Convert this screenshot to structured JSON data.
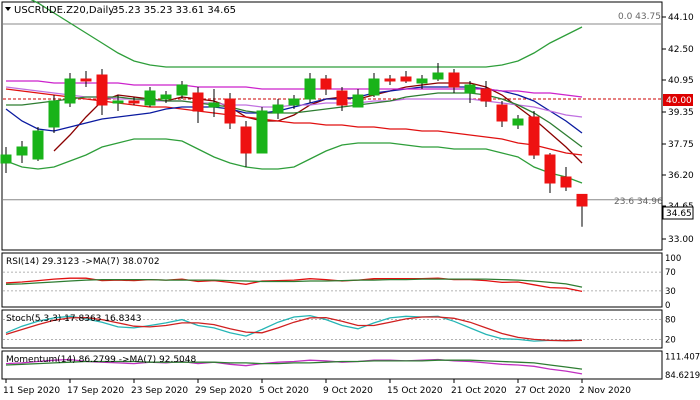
{
  "colors": {
    "bull": "#19b319",
    "bear": "#ee1111",
    "sma_fast": "#8b0000",
    "sma_slow": "#e01010",
    "ema_blue": "#0a1aa0",
    "purple": "#cc22cc",
    "green_ma": "#2e7d32",
    "band": "#2e9e3a",
    "lilac": "#c070e0",
    "rsi": "#e01010",
    "rsi_ma": "#2e7d32",
    "stoch_k": "#26b5b5",
    "stoch_d": "#d02020",
    "mom": "#c030c0",
    "mom_ma": "#2e7d32",
    "fib": "#888888",
    "level": "#cc0000",
    "price_box": "#ffffff"
  },
  "main": {
    "title": "USCRUDE.Z20,Daily",
    "ohlc": "35.23 35.23 33.61 34.65",
    "fib_top_label": "0.0 43.75",
    "fib_mid_label": "23.6 34.96",
    "level_label": "40.00",
    "price_label": "34.65"
  },
  "rsi": {
    "title": "RSI(14) 29.3123 ->MA(7) 38.0702"
  },
  "stoch": {
    "title": "Stoch(5,3,3) 17.8363 16.8343"
  },
  "momentum": {
    "title": "Momentum(14) 86.2799 ->MA(7) 92.5048"
  },
  "chart_data": [
    {
      "type": "candlestick",
      "title": "USCRUDE.Z20,Daily",
      "ylim": [
        32.5,
        44.8
      ],
      "y_ticks": [
        "44.10",
        "42.50",
        "40.95",
        "39.35",
        "37.75",
        "36.20",
        "34.65",
        "33.00"
      ],
      "y_tick_values": [
        44.1,
        42.5,
        40.95,
        39.35,
        37.75,
        36.2,
        34.65,
        33.0
      ],
      "x_tick_labels": [
        "11 Sep 2020",
        "17 Sep 2020",
        "23 Sep 2020",
        "29 Sep 2020",
        "5 Oct 2020",
        "9 Oct 2020",
        "15 Oct 2020",
        "21 Oct 2020",
        "27 Oct 2020",
        "2 Nov 2020"
      ],
      "x_tick_bar_index": [
        0,
        4,
        8,
        12,
        16,
        20,
        24,
        28,
        32,
        36
      ],
      "candles": [
        {
          "o": 36.8,
          "h": 37.6,
          "l": 36.3,
          "c": 37.2
        },
        {
          "o": 37.2,
          "h": 37.9,
          "l": 36.8,
          "c": 37.6
        },
        {
          "o": 37.0,
          "h": 38.6,
          "l": 36.9,
          "c": 38.4
        },
        {
          "o": 38.6,
          "h": 40.2,
          "l": 38.3,
          "c": 39.9
        },
        {
          "o": 39.8,
          "h": 41.3,
          "l": 39.6,
          "c": 41.0
        },
        {
          "o": 41.0,
          "h": 41.4,
          "l": 40.6,
          "c": 40.9
        },
        {
          "o": 41.2,
          "h": 41.5,
          "l": 39.2,
          "c": 39.7
        },
        {
          "o": 39.8,
          "h": 40.2,
          "l": 39.4,
          "c": 39.9
        },
        {
          "o": 39.9,
          "h": 40.1,
          "l": 39.7,
          "c": 39.8
        },
        {
          "o": 39.7,
          "h": 40.6,
          "l": 39.6,
          "c": 40.4
        },
        {
          "o": 40.0,
          "h": 40.4,
          "l": 39.8,
          "c": 40.2
        },
        {
          "o": 40.2,
          "h": 40.9,
          "l": 40.0,
          "c": 40.7
        },
        {
          "o": 40.3,
          "h": 40.6,
          "l": 38.8,
          "c": 39.4
        },
        {
          "o": 39.6,
          "h": 40.5,
          "l": 39.1,
          "c": 39.8
        },
        {
          "o": 40.0,
          "h": 40.3,
          "l": 38.5,
          "c": 38.8
        },
        {
          "o": 38.6,
          "h": 38.9,
          "l": 36.6,
          "c": 37.3
        },
        {
          "o": 37.3,
          "h": 39.6,
          "l": 37.3,
          "c": 39.4
        },
        {
          "o": 39.3,
          "h": 40.0,
          "l": 39.0,
          "c": 39.7
        },
        {
          "o": 39.7,
          "h": 40.2,
          "l": 39.5,
          "c": 40.0
        },
        {
          "o": 40.0,
          "h": 41.3,
          "l": 39.8,
          "c": 41.0
        },
        {
          "o": 41.0,
          "h": 41.2,
          "l": 40.2,
          "c": 40.5
        },
        {
          "o": 40.4,
          "h": 40.6,
          "l": 39.4,
          "c": 39.7
        },
        {
          "o": 39.6,
          "h": 40.5,
          "l": 39.6,
          "c": 40.2
        },
        {
          "o": 40.2,
          "h": 41.3,
          "l": 40.1,
          "c": 41.0
        },
        {
          "o": 41.0,
          "h": 41.2,
          "l": 40.7,
          "c": 40.9
        },
        {
          "o": 41.1,
          "h": 41.4,
          "l": 40.8,
          "c": 40.9
        },
        {
          "o": 40.8,
          "h": 41.2,
          "l": 40.5,
          "c": 41.0
        },
        {
          "o": 41.0,
          "h": 41.8,
          "l": 40.9,
          "c": 41.3
        },
        {
          "o": 41.3,
          "h": 41.5,
          "l": 40.3,
          "c": 40.6
        },
        {
          "o": 40.3,
          "h": 40.9,
          "l": 39.8,
          "c": 40.7
        },
        {
          "o": 40.5,
          "h": 40.9,
          "l": 39.6,
          "c": 39.9
        },
        {
          "o": 39.7,
          "h": 39.9,
          "l": 38.6,
          "c": 38.9
        },
        {
          "o": 38.7,
          "h": 39.2,
          "l": 38.5,
          "c": 39.0
        },
        {
          "o": 39.1,
          "h": 39.4,
          "l": 37.0,
          "c": 37.2
        },
        {
          "o": 37.2,
          "h": 37.3,
          "l": 35.3,
          "c": 35.8
        },
        {
          "o": 36.1,
          "h": 36.6,
          "l": 35.4,
          "c": 35.6
        },
        {
          "o": 35.23,
          "h": 35.23,
          "l": 33.61,
          "c": 34.65
        }
      ],
      "overlays": [
        {
          "name": "sma_fast",
          "color": "sma_fast",
          "values": [
            null,
            null,
            null,
            37.4,
            38.2,
            39.1,
            39.9,
            40.2,
            40.1,
            40.0,
            39.9,
            40.1,
            40.0,
            39.9,
            39.6,
            39.1,
            38.9,
            38.9,
            39.2,
            39.7,
            40.0,
            40.1,
            40.0,
            40.2,
            40.4,
            40.6,
            40.7,
            40.8,
            40.8,
            40.8,
            40.6,
            40.2,
            39.6,
            39.0,
            38.3,
            37.6,
            36.8
          ]
        },
        {
          "name": "sma_slow",
          "color": "sma_slow",
          "values": [
            40.5,
            40.4,
            40.3,
            40.2,
            40.1,
            40.0,
            39.9,
            39.8,
            39.7,
            39.6,
            39.6,
            39.5,
            39.4,
            39.3,
            39.2,
            39.1,
            39.0,
            38.9,
            38.8,
            38.8,
            38.7,
            38.7,
            38.6,
            38.6,
            38.5,
            38.5,
            38.4,
            38.4,
            38.3,
            38.2,
            38.1,
            38.0,
            37.8,
            37.7,
            37.5,
            37.3,
            37.2
          ]
        },
        {
          "name": "ema_blue",
          "color": "ema_blue",
          "values": [
            39.5,
            38.9,
            38.5,
            38.4,
            38.6,
            38.8,
            39.0,
            39.1,
            39.2,
            39.3,
            39.5,
            39.6,
            39.6,
            39.6,
            39.5,
            39.3,
            39.3,
            39.4,
            39.6,
            39.8,
            40.0,
            40.0,
            40.1,
            40.3,
            40.4,
            40.5,
            40.6,
            40.6,
            40.6,
            40.6,
            40.5,
            40.4,
            40.2,
            39.9,
            39.4,
            38.9,
            38.3
          ]
        },
        {
          "name": "sma_purple",
          "color": "purple",
          "values": [
            40.9,
            40.9,
            40.9,
            40.8,
            40.8,
            40.8,
            40.8,
            40.8,
            40.7,
            40.7,
            40.7,
            40.7,
            40.6,
            40.6,
            40.6,
            40.6,
            40.5,
            40.5,
            40.5,
            40.5,
            40.5,
            40.5,
            40.5,
            40.5,
            40.5,
            40.5,
            40.5,
            40.5,
            40.5,
            40.5,
            40.5,
            40.4,
            40.4,
            40.3,
            40.3,
            40.2,
            40.1
          ]
        },
        {
          "name": "sma_lilac",
          "color": "lilac",
          "values": [
            40.6,
            40.5,
            40.4,
            40.3,
            40.2,
            40.1,
            40.1,
            40.0,
            40.0,
            39.9,
            39.9,
            39.9,
            39.8,
            39.8,
            39.7,
            39.7,
            39.6,
            39.6,
            39.7,
            39.7,
            39.8,
            39.8,
            39.8,
            39.9,
            39.9,
            40.0,
            40.0,
            40.0,
            40.0,
            40.0,
            39.9,
            39.8,
            39.7,
            39.6,
            39.4,
            39.2,
            39.1
          ]
        },
        {
          "name": "sma_green",
          "color": "green_ma",
          "values": [
            39.7,
            39.7,
            39.8,
            39.9,
            40.0,
            40.1,
            40.1,
            40.1,
            40.0,
            40.0,
            39.9,
            39.9,
            39.8,
            39.7,
            39.6,
            39.4,
            39.3,
            39.3,
            39.3,
            39.4,
            39.5,
            39.6,
            39.7,
            39.8,
            39.9,
            40.1,
            40.2,
            40.3,
            40.3,
            40.3,
            40.2,
            40.0,
            39.7,
            39.3,
            38.8,
            38.2,
            37.6
          ]
        },
        {
          "name": "bb_upper",
          "color": "band",
          "values": [
            45.6,
            45.2,
            44.8,
            44.3,
            43.8,
            43.3,
            42.8,
            42.3,
            41.9,
            41.7,
            41.6,
            41.6,
            41.6,
            41.6,
            41.6,
            41.6,
            41.6,
            41.6,
            41.6,
            41.6,
            41.6,
            41.6,
            41.6,
            41.6,
            41.6,
            41.6,
            41.6,
            41.6,
            41.6,
            41.6,
            41.6,
            41.7,
            41.9,
            42.3,
            42.8,
            43.2,
            43.6
          ]
        },
        {
          "name": "bb_lower",
          "color": "band",
          "values": [
            36.9,
            36.6,
            36.5,
            36.6,
            36.9,
            37.2,
            37.6,
            37.8,
            38.0,
            38.0,
            38.0,
            37.9,
            37.5,
            37.1,
            36.8,
            36.6,
            36.5,
            36.5,
            36.6,
            37.0,
            37.4,
            37.7,
            37.8,
            37.8,
            37.8,
            37.7,
            37.6,
            37.6,
            37.5,
            37.5,
            37.5,
            37.3,
            37.1,
            36.6,
            36.3,
            36.1,
            35.8
          ]
        }
      ],
      "horizontal_levels": [
        {
          "label": "0.0 43.75",
          "value": 43.75,
          "style": "solid"
        },
        {
          "label": "23.6 34.96",
          "value": 34.96,
          "style": "solid"
        },
        {
          "label": "40.00",
          "value": 40.0,
          "style": "dashed"
        }
      ]
    },
    {
      "type": "line",
      "title": "RSI(14) 29.3123 ->MA(7) 38.0702",
      "ylim": [
        0,
        100
      ],
      "y_ticks": [
        100,
        70,
        30,
        0
      ],
      "series": [
        {
          "name": "RSI(14)",
          "color": "rsi",
          "values": [
            47,
            49,
            52,
            55,
            57,
            57,
            52,
            53,
            52,
            54,
            53,
            55,
            50,
            52,
            48,
            44,
            51,
            52,
            53,
            56,
            54,
            51,
            53,
            56,
            56,
            56,
            56,
            57,
            54,
            54,
            52,
            48,
            49,
            43,
            37,
            36,
            29
          ]
        },
        {
          "name": "MA(7)",
          "color": "rsi_ma",
          "values": [
            44,
            45,
            47,
            49,
            51,
            53,
            54,
            54,
            54,
            54,
            53,
            53,
            53,
            53,
            52,
            51,
            50,
            50,
            50,
            51,
            51,
            52,
            53,
            53,
            54,
            54,
            55,
            55,
            55,
            55,
            55,
            54,
            53,
            51,
            48,
            45,
            38
          ]
        }
      ]
    },
    {
      "type": "line",
      "title": "Stoch(5,3,3) 17.8363 16.8343",
      "ylim": [
        0,
        100
      ],
      "y_ticks": [
        80,
        20
      ],
      "series": [
        {
          "name": "%K",
          "color": "stoch_k",
          "values": [
            40,
            60,
            75,
            85,
            90,
            82,
            72,
            58,
            55,
            62,
            70,
            80,
            62,
            55,
            40,
            30,
            50,
            72,
            88,
            92,
            80,
            62,
            52,
            70,
            85,
            90,
            88,
            90,
            75,
            55,
            35,
            22,
            20,
            15,
            17,
            16,
            18
          ]
        },
        {
          "name": "%D",
          "color": "stoch_d",
          "values": [
            35,
            50,
            65,
            78,
            85,
            86,
            80,
            70,
            60,
            58,
            62,
            70,
            70,
            65,
            52,
            42,
            40,
            55,
            72,
            85,
            86,
            75,
            62,
            62,
            72,
            82,
            88,
            88,
            84,
            72,
            55,
            38,
            26,
            20,
            17,
            16,
            17
          ]
        }
      ]
    },
    {
      "type": "line",
      "title": "Momentum(14) 86.2799 ->MA(7) 92.5048",
      "ylim": [
        80,
        115
      ],
      "y_ticks": [
        "111.4077",
        "84.6219"
      ],
      "series": [
        {
          "name": "Momentum(14)",
          "color": "mom",
          "values": [
            101,
            102,
            104,
            106,
            107,
            104,
            103,
            102,
            101,
            103,
            102,
            104,
            101,
            103,
            100,
            98,
            101,
            103,
            104,
            106,
            105,
            103,
            104,
            106,
            106,
            105,
            106,
            107,
            105,
            104,
            102,
            100,
            99,
            97,
            93,
            90,
            86
          ]
        },
        {
          "name": "MA(7)",
          "color": "mom_ma",
          "values": [
            99,
            100,
            101,
            102,
            103,
            104,
            104,
            104,
            104,
            103,
            103,
            103,
            103,
            103,
            102,
            102,
            101,
            101,
            102,
            102,
            103,
            104,
            104,
            105,
            105,
            105,
            105,
            106,
            106,
            106,
            105,
            104,
            103,
            102,
            99,
            96,
            93
          ]
        }
      ]
    }
  ]
}
